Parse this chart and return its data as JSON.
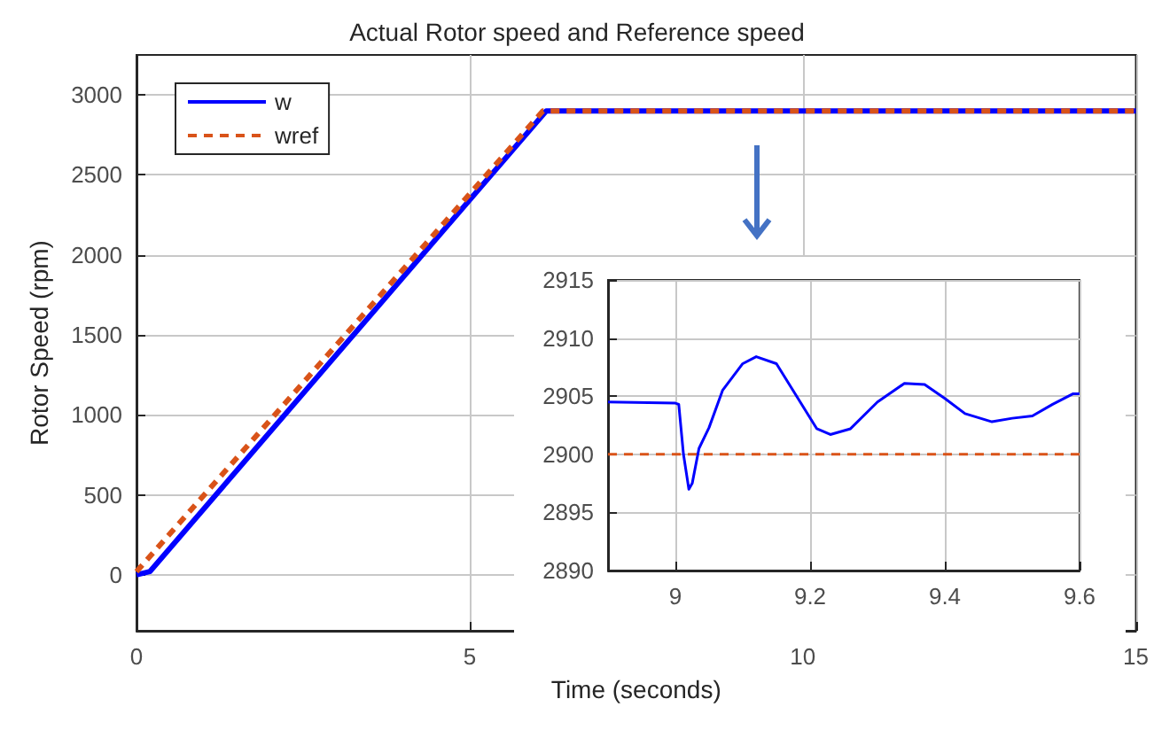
{
  "chart_data": [
    {
      "type": "line",
      "title": "Actual Rotor speed and Reference speed",
      "xlabel": "Time (seconds)",
      "ylabel": "Rotor Speed (rpm)",
      "xlim": [
        0,
        15
      ],
      "ylim": [
        -350,
        3250
      ],
      "xticks": [
        0,
        5,
        10,
        15
      ],
      "yticks": [
        0,
        500,
        1000,
        1500,
        2000,
        2500,
        3000
      ],
      "grid": true,
      "legend": "top left",
      "series": [
        {
          "name": "w",
          "color": "#0000ff",
          "line_style": "solid",
          "x": [
            0,
            0.2,
            6.15,
            15
          ],
          "values": [
            0,
            20,
            2900,
            2900
          ]
        },
        {
          "name": "wref",
          "color": "#d95319",
          "line_style": "dashed",
          "x": [
            0,
            6.1,
            15
          ],
          "values": [
            20,
            2900,
            2900
          ]
        }
      ]
    },
    {
      "type": "line",
      "xlim": [
        8.9,
        9.6
      ],
      "ylim": [
        2890,
        2915
      ],
      "xticks": [
        9,
        9.2,
        9.4,
        9.6
      ],
      "yticks": [
        2890,
        2895,
        2900,
        2905,
        2910,
        2915
      ],
      "grid": true,
      "series": [
        {
          "color": "#0000ff",
          "line_style": "solid",
          "x": [
            8.9,
            9.0,
            9.005,
            9.012,
            9.02,
            9.025,
            9.035,
            9.05,
            9.07,
            9.1,
            9.12,
            9.15,
            9.18,
            9.21,
            9.23,
            9.26,
            9.3,
            9.34,
            9.37,
            9.4,
            9.43,
            9.47,
            9.5,
            9.53,
            9.56,
            9.59,
            9.6
          ],
          "values": [
            2904.5,
            2904.4,
            2904.3,
            2900,
            2897,
            2897.5,
            2900.5,
            2902.3,
            2905.5,
            2907.8,
            2908.4,
            2907.8,
            2905,
            2902.2,
            2901.7,
            2902.2,
            2904.5,
            2906.1,
            2906,
            2904.8,
            2903.5,
            2902.8,
            2903.1,
            2903.3,
            2904.3,
            2905.2,
            2905.2
          ]
        },
        {
          "color": "#d95319",
          "line_style": "dashed",
          "x": [
            8.9,
            9.6
          ],
          "values": [
            2900,
            2900
          ]
        }
      ]
    }
  ]
}
